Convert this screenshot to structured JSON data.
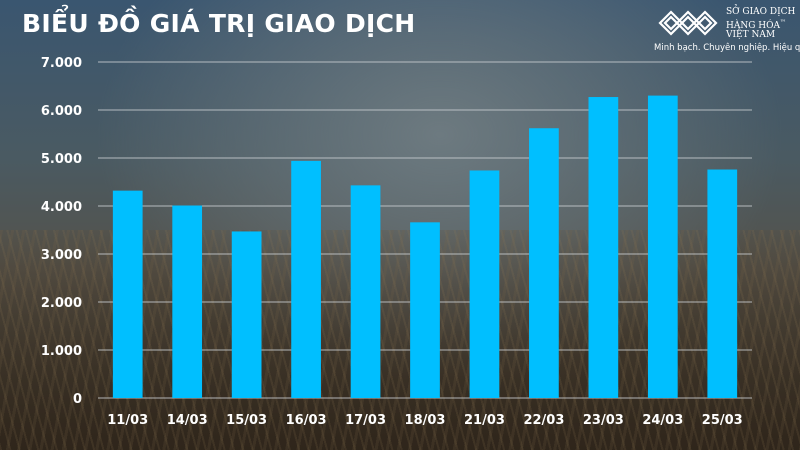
{
  "logo": {
    "name_lines": [
      "SỞ GIAO DỊCH",
      "HÀNG HÓA",
      "VIỆT NAM"
    ],
    "trademark": "™",
    "tagline": "Minh bạch. Chuyên nghiệp. Hiệu quả",
    "icon": "mxv-logo-icon"
  },
  "colors": {
    "bar": "#00bfff",
    "grid": "#c8ccd0",
    "text": "#ffffff"
  },
  "chart_data": {
    "type": "bar",
    "title": "BIỂU ĐỒ GIÁ TRỊ GIAO DỊCH",
    "xlabel": "",
    "ylabel": "",
    "categories": [
      "11/03",
      "14/03",
      "15/03",
      "16/03",
      "17/03",
      "18/03",
      "21/03",
      "22/03",
      "23/03",
      "24/03",
      "25/03"
    ],
    "values": [
      4320,
      4010,
      3470,
      4940,
      4430,
      3660,
      4740,
      5620,
      6270,
      6300,
      4760
    ],
    "ylim": [
      0,
      7000
    ],
    "yticks": [
      0,
      1000,
      2000,
      3000,
      4000,
      5000,
      6000,
      7000
    ],
    "ytick_labels": [
      "0",
      "1.000",
      "2.000",
      "3.000",
      "4.000",
      "5.000",
      "6.000",
      "7.000"
    ],
    "grid": true,
    "legend": "none"
  }
}
